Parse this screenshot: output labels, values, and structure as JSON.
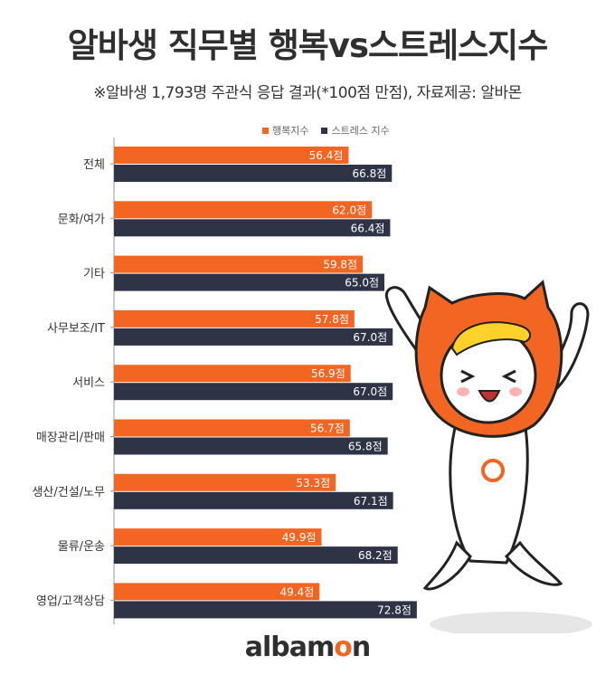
{
  "header": {
    "title": "알바생 직무별 행복vs스트레스지수",
    "subtitle": "※알바생 1,793명 주관식 응답 결과(*100점 만점),  자료제공: 알바몬"
  },
  "footer": {
    "logo_text_a": "albam",
    "logo_text_b": "o",
    "logo_text_c": "n"
  },
  "colors": {
    "happiness": "#f26522",
    "stress": "#2e3445",
    "axis": "#999999"
  },
  "chart_data": {
    "type": "bar",
    "orientation": "horizontal",
    "categories": [
      "전체",
      "문화/여가",
      "기타",
      "사무보조/IT",
      "서비스",
      "매장관리/판매",
      "생산/건설/노무",
      "물류/운송",
      "영업/고객상담"
    ],
    "series": [
      {
        "name": "행복지수",
        "values": [
          56.4,
          62.0,
          59.8,
          57.8,
          56.9,
          56.7,
          53.3,
          49.9,
          49.4
        ],
        "labels": [
          "56.4점",
          "62.0점",
          "59.8점",
          "57.8점",
          "56.9점",
          "56.7점",
          "53.3점",
          "49.9점",
          "49.4점"
        ]
      },
      {
        "name": "스트레스 지수",
        "values": [
          66.8,
          66.4,
          65.0,
          67.0,
          67.0,
          65.8,
          67.1,
          68.2,
          72.8
        ],
        "labels": [
          "66.8점",
          "66.4점",
          "65.0점",
          "67.0점",
          "67.0점",
          "65.8점",
          "67.1점",
          "68.2점",
          "72.8점"
        ]
      }
    ],
    "legend_position": "top",
    "grid": false
  }
}
